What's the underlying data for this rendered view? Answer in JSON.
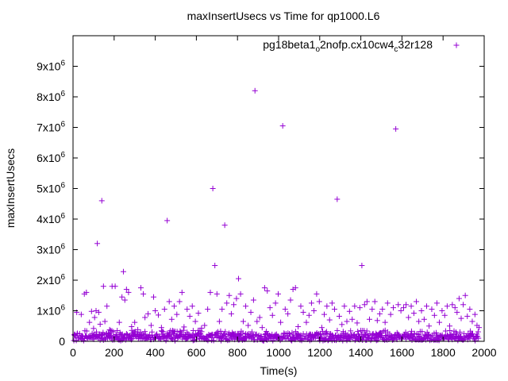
{
  "chart_data": {
    "type": "scatter",
    "title": "maxInsertUsecs vs Time for qp1000.L6",
    "xlabel": "Time(s)",
    "ylabel": "maxInsertUsecs",
    "xlim": [
      0,
      2000
    ],
    "ylim": [
      0,
      10000000
    ],
    "x_ticks": [
      0,
      200,
      400,
      600,
      800,
      1000,
      1200,
      1400,
      1600,
      1800,
      2000
    ],
    "x_tick_labels": [
      "0",
      "200",
      "400",
      "600",
      "800",
      "1000",
      "1200",
      "1400",
      "1600",
      "1800",
      "2000"
    ],
    "y_ticks": [
      0,
      1000000,
      2000000,
      3000000,
      4000000,
      5000000,
      6000000,
      7000000,
      8000000,
      9000000
    ],
    "y_tick_labels": [
      {
        "mantissa": "0",
        "exp": ""
      },
      {
        "mantissa": "1x10",
        "exp": "6"
      },
      {
        "mantissa": "2x10",
        "exp": "6"
      },
      {
        "mantissa": "3x10",
        "exp": "6"
      },
      {
        "mantissa": "4x10",
        "exp": "6"
      },
      {
        "mantissa": "5x10",
        "exp": "6"
      },
      {
        "mantissa": "6x10",
        "exp": "6"
      },
      {
        "mantissa": "7x10",
        "exp": "6"
      },
      {
        "mantissa": "8x10",
        "exp": "6"
      },
      {
        "mantissa": "9x10",
        "exp": "6"
      }
    ],
    "grid": false,
    "legend_position": "top-right",
    "legend": {
      "parts": [
        {
          "text": "pg18beta1",
          "sub": false
        },
        {
          "text": "o",
          "sub": true
        },
        {
          "text": "2nofp.cx10cw4",
          "sub": false
        },
        {
          "text": "c",
          "sub": true
        },
        {
          "text": "32r128",
          "sub": false
        }
      ]
    },
    "marker": "plus",
    "series_color": "#9400d3",
    "outliers": [
      [
        18,
        950000
      ],
      [
        40,
        880000
      ],
      [
        55,
        1550000
      ],
      [
        65,
        1600000
      ],
      [
        80,
        620000
      ],
      [
        90,
        980000
      ],
      [
        100,
        420000
      ],
      [
        105,
        780000
      ],
      [
        112,
        1000000
      ],
      [
        118,
        3200000
      ],
      [
        125,
        950000
      ],
      [
        132,
        560000
      ],
      [
        140,
        4600000
      ],
      [
        148,
        1800000
      ],
      [
        155,
        650000
      ],
      [
        165,
        1150000
      ],
      [
        178,
        380000
      ],
      [
        190,
        1800000
      ],
      [
        205,
        1800000
      ],
      [
        215,
        350000
      ],
      [
        225,
        620000
      ],
      [
        238,
        1450000
      ],
      [
        245,
        2280000
      ],
      [
        252,
        1350000
      ],
      [
        260,
        1700000
      ],
      [
        270,
        1600000
      ],
      [
        285,
        480000
      ],
      [
        300,
        620000
      ],
      [
        315,
        380000
      ],
      [
        330,
        1750000
      ],
      [
        342,
        1550000
      ],
      [
        350,
        780000
      ],
      [
        365,
        900000
      ],
      [
        380,
        520000
      ],
      [
        392,
        1450000
      ],
      [
        400,
        1000000
      ],
      [
        415,
        860000
      ],
      [
        430,
        450000
      ],
      [
        445,
        1050000
      ],
      [
        458,
        3950000
      ],
      [
        468,
        1300000
      ],
      [
        480,
        720000
      ],
      [
        492,
        1150000
      ],
      [
        505,
        880000
      ],
      [
        518,
        1300000
      ],
      [
        530,
        1600000
      ],
      [
        540,
        470000
      ],
      [
        555,
        1050000
      ],
      [
        568,
        820000
      ],
      [
        580,
        1150000
      ],
      [
        595,
        650000
      ],
      [
        610,
        920000
      ],
      [
        625,
        430000
      ],
      [
        640,
        520000
      ],
      [
        655,
        1050000
      ],
      [
        668,
        1600000
      ],
      [
        680,
        5000000
      ],
      [
        690,
        2480000
      ],
      [
        700,
        1550000
      ],
      [
        712,
        650000
      ],
      [
        725,
        1050000
      ],
      [
        738,
        3800000
      ],
      [
        748,
        1250000
      ],
      [
        760,
        1500000
      ],
      [
        770,
        900000
      ],
      [
        782,
        1200000
      ],
      [
        795,
        1400000
      ],
      [
        805,
        2050000
      ],
      [
        815,
        1550000
      ],
      [
        828,
        650000
      ],
      [
        840,
        1150000
      ],
      [
        852,
        520000
      ],
      [
        865,
        950000
      ],
      [
        878,
        1350000
      ],
      [
        885,
        8200000
      ],
      [
        895,
        650000
      ],
      [
        908,
        780000
      ],
      [
        920,
        450000
      ],
      [
        932,
        1750000
      ],
      [
        945,
        1650000
      ],
      [
        958,
        1100000
      ],
      [
        970,
        850000
      ],
      [
        985,
        1250000
      ],
      [
        998,
        1550000
      ],
      [
        1010,
        620000
      ],
      [
        1020,
        7050000
      ],
      [
        1032,
        1050000
      ],
      [
        1045,
        900000
      ],
      [
        1058,
        1350000
      ],
      [
        1070,
        1700000
      ],
      [
        1082,
        1750000
      ],
      [
        1095,
        480000
      ],
      [
        1108,
        1150000
      ],
      [
        1120,
        950000
      ],
      [
        1135,
        620000
      ],
      [
        1148,
        850000
      ],
      [
        1160,
        1250000
      ],
      [
        1172,
        1000000
      ],
      [
        1185,
        1550000
      ],
      [
        1198,
        1300000
      ],
      [
        1210,
        450000
      ],
      [
        1222,
        880000
      ],
      [
        1235,
        1150000
      ],
      [
        1248,
        700000
      ],
      [
        1260,
        1250000
      ],
      [
        1272,
        1050000
      ],
      [
        1285,
        4650000
      ],
      [
        1295,
        820000
      ],
      [
        1308,
        550000
      ],
      [
        1320,
        1150000
      ],
      [
        1332,
        650000
      ],
      [
        1345,
        980000
      ],
      [
        1358,
        720000
      ],
      [
        1370,
        1150000
      ],
      [
        1382,
        600000
      ],
      [
        1395,
        1100000
      ],
      [
        1405,
        2480000
      ],
      [
        1418,
        1200000
      ],
      [
        1430,
        1300000
      ],
      [
        1442,
        720000
      ],
      [
        1455,
        1050000
      ],
      [
        1468,
        1300000
      ],
      [
        1480,
        680000
      ],
      [
        1492,
        900000
      ],
      [
        1505,
        1050000
      ],
      [
        1518,
        620000
      ],
      [
        1530,
        1250000
      ],
      [
        1545,
        880000
      ],
      [
        1558,
        1100000
      ],
      [
        1570,
        6950000
      ],
      [
        1582,
        1200000
      ],
      [
        1595,
        1000000
      ],
      [
        1608,
        1100000
      ],
      [
        1620,
        1200000
      ],
      [
        1632,
        780000
      ],
      [
        1645,
        1150000
      ],
      [
        1658,
        920000
      ],
      [
        1670,
        1300000
      ],
      [
        1682,
        650000
      ],
      [
        1695,
        1000000
      ],
      [
        1708,
        720000
      ],
      [
        1720,
        1150000
      ],
      [
        1732,
        500000
      ],
      [
        1745,
        1050000
      ],
      [
        1758,
        850000
      ],
      [
        1770,
        1250000
      ],
      [
        1782,
        620000
      ],
      [
        1795,
        1000000
      ],
      [
        1808,
        850000
      ],
      [
        1820,
        1150000
      ],
      [
        1832,
        500000
      ],
      [
        1845,
        1200000
      ],
      [
        1858,
        1100000
      ],
      [
        1868,
        950000
      ],
      [
        1878,
        1400000
      ],
      [
        1888,
        750000
      ],
      [
        1898,
        1200000
      ],
      [
        1908,
        1500000
      ],
      [
        1918,
        820000
      ],
      [
        1930,
        1050000
      ],
      [
        1942,
        650000
      ],
      [
        1955,
        880000
      ],
      [
        1965,
        520000
      ],
      [
        1975,
        450000
      ]
    ]
  }
}
